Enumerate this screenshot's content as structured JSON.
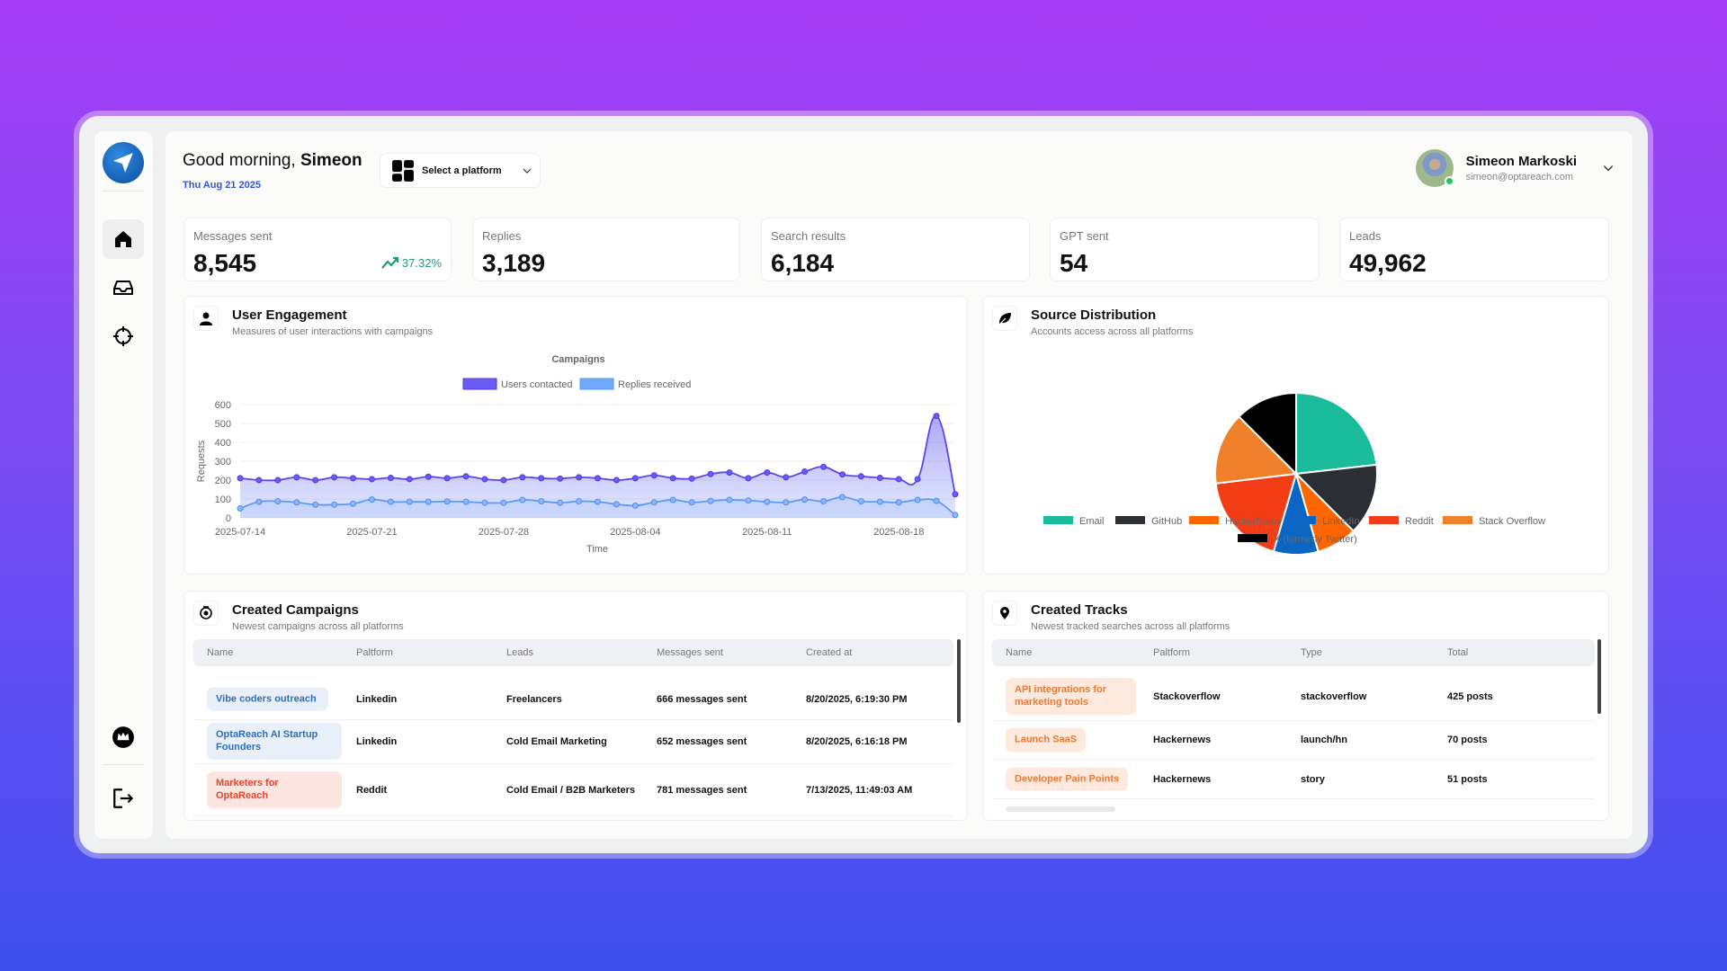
{
  "sidebar": {
    "items": [
      {
        "icon": "home-icon",
        "active": true
      },
      {
        "icon": "inbox-icon"
      },
      {
        "icon": "crosshair-icon"
      }
    ],
    "bottom": [
      {
        "icon": "crown-icon"
      },
      {
        "icon": "logout-icon"
      }
    ]
  },
  "header": {
    "greeting": "Good morning,",
    "name": "Simeon",
    "date": "Thu Aug 21 2025",
    "platform_select": "Select a platform",
    "user": {
      "name": "Simeon Markoski",
      "email": "simeon@optareach.com",
      "status_color": "#22c55e"
    }
  },
  "stats": [
    {
      "label": "Messages sent",
      "value": "8,545",
      "trend": "37.32%"
    },
    {
      "label": "Replies",
      "value": "3,189"
    },
    {
      "label": "Search results",
      "value": "6,184"
    },
    {
      "label": "GPT sent",
      "value": "54"
    },
    {
      "label": "Leads",
      "value": "49,962"
    }
  ],
  "engagement": {
    "title": "User Engagement",
    "subtitle": "Measures of user interactions with campaigns"
  },
  "source": {
    "title": "Source Distribution",
    "subtitle": "Accounts access across all platforms"
  },
  "chart_data": [
    {
      "type": "area",
      "title": "Campaigns",
      "xlabel": "Time",
      "ylabel": "Requests",
      "ylim": [
        0,
        600
      ],
      "yticks": [
        "0",
        "100",
        "200",
        "300",
        "400",
        "500",
        "600"
      ],
      "xticks": [
        "2025-07-14",
        "2025-07-21",
        "2025-07-28",
        "2025-08-04",
        "2025-08-11",
        "2025-08-18"
      ],
      "x_start": "2025-07-14",
      "x_end": "2025-08-21",
      "grid": true,
      "legend": "top",
      "series": [
        {
          "name": "Users contacted",
          "color": "#6a5cf5",
          "values": [
            210,
            200,
            200,
            215,
            200,
            215,
            210,
            205,
            212,
            205,
            218,
            210,
            220,
            205,
            200,
            215,
            210,
            208,
            215,
            210,
            200,
            210,
            225,
            210,
            208,
            232,
            240,
            210,
            240,
            215,
            245,
            270,
            230,
            220,
            212,
            205,
            205,
            540,
            125
          ]
        },
        {
          "name": "Replies received",
          "color": "#6fa8fb",
          "values": [
            50,
            85,
            88,
            82,
            70,
            70,
            75,
            97,
            85,
            85,
            85,
            87,
            85,
            80,
            80,
            95,
            88,
            80,
            88,
            85,
            72,
            65,
            82,
            95,
            82,
            90,
            95,
            92,
            85,
            82,
            97,
            88,
            110,
            88,
            85,
            82,
            95,
            90,
            15
          ]
        }
      ]
    },
    {
      "type": "pie",
      "legend": "bottom",
      "categories": [
        "Email",
        "GitHub",
        "HackerNews",
        "LinkedIn",
        "Reddit",
        "Stack Overflow",
        "X (formerly Twitter)"
      ],
      "values": [
        23.2,
        14.3,
        8.1,
        8.9,
        18.6,
        14.4,
        12.5
      ],
      "colors": [
        "#1abc9c",
        "#2b2e33",
        "#ff6600",
        "#0a66c2",
        "#f33d16",
        "#f0802a",
        "#000000"
      ]
    }
  ],
  "campaigns": {
    "title": "Created Campaigns",
    "subtitle": "Newest campaigns across all platforms",
    "columns": [
      "Name",
      "Paltform",
      "Leads",
      "Messages sent",
      "Created at"
    ],
    "rows": [
      {
        "name": "Vibe coders outreach",
        "platform": "Linkedin",
        "leads": "Freelancers",
        "messages": "666 messages sent",
        "created": "8/20/2025, 6:19:30 PM",
        "color": "blue"
      },
      {
        "name": "OptaReach AI Startup Founders",
        "platform": "Linkedin",
        "leads": "Cold Email Marketing",
        "messages": "652 messages sent",
        "created": "8/20/2025, 6:16:18 PM",
        "color": "blue"
      },
      {
        "name": "Marketers for OptaReach",
        "platform": "Reddit",
        "leads": "Cold Email / B2B Marketers",
        "messages": "781 messages sent",
        "created": "7/13/2025, 11:49:03 AM",
        "color": "red"
      }
    ]
  },
  "tracks": {
    "title": "Created Tracks",
    "subtitle": "Newest tracked searches across all platforms",
    "columns": [
      "Name",
      "Paltform",
      "Type",
      "Total"
    ],
    "rows": [
      {
        "name": "API integrations for marketing tools",
        "platform": "Stackoverflow",
        "type": "stackoverflow",
        "total": "425 posts"
      },
      {
        "name": "Launch SaaS",
        "platform": "Hackernews",
        "type": "launch/hn",
        "total": "70 posts"
      },
      {
        "name": "Developer Pain Points",
        "platform": "Hackernews",
        "type": "story",
        "total": "51 posts"
      }
    ]
  }
}
